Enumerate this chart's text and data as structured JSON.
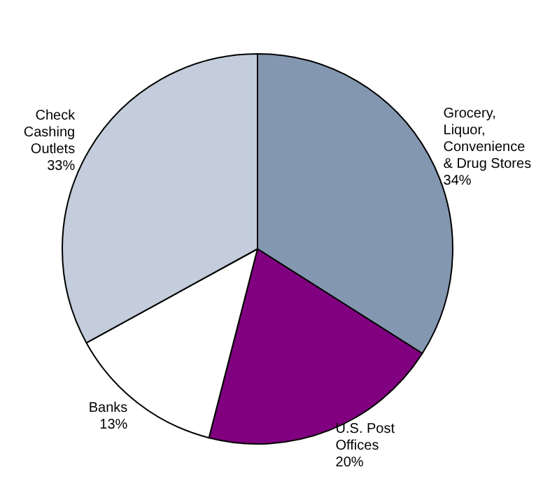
{
  "chart_data": {
    "type": "pie",
    "categories": [
      "Grocery, Liquor, Convenience & Drug Stores",
      "U.S. Post Offices",
      "Banks",
      "Check Cashing Outlets"
    ],
    "values": [
      34,
      20,
      13,
      33
    ],
    "colors": [
      "#8497b0",
      "#800080",
      "#ffffff",
      "#c3cddb"
    ],
    "value_labels": [
      "34%",
      "20%",
      "13%",
      "33%"
    ],
    "legend": false
  }
}
